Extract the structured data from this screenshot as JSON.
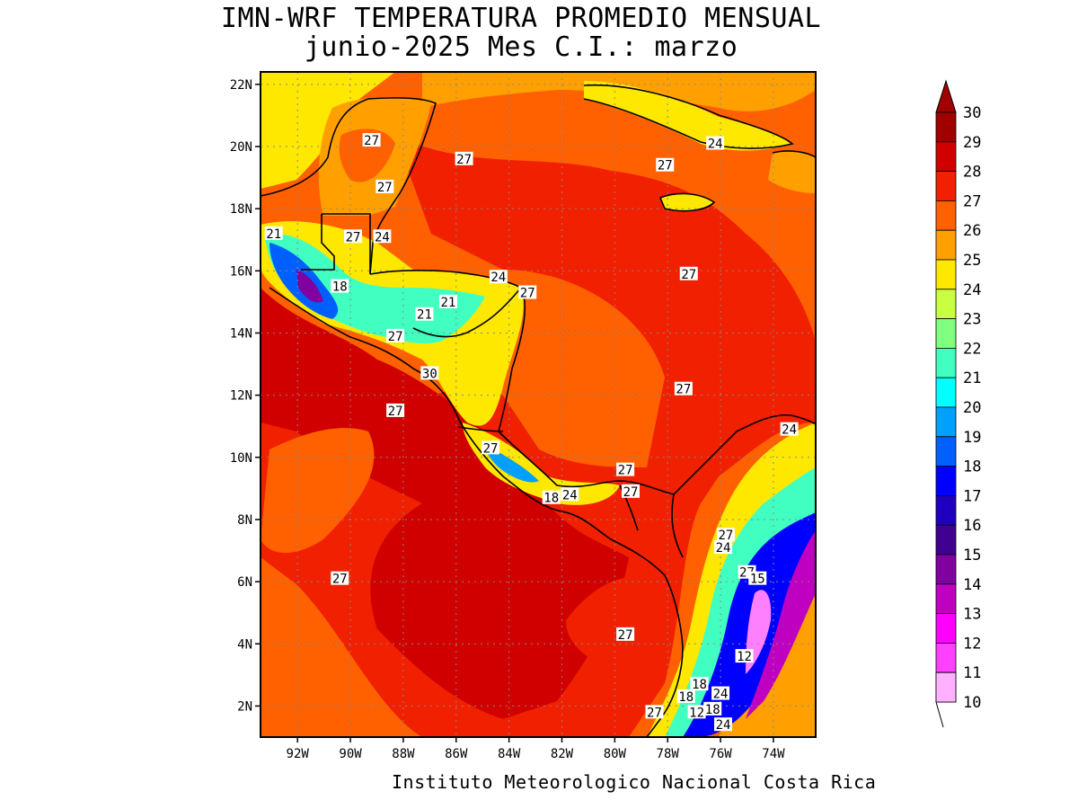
{
  "title": {
    "line1": "IMN-WRF  TEMPERATURA PROMEDIO MENSUAL",
    "line2": "junio-2025 Mes C.I.: marzo"
  },
  "credit": "Instituto Meteorologico Nacional Costa Rica",
  "axes": {
    "lat_ticks": [
      "22N",
      "20N",
      "18N",
      "16N",
      "14N",
      "12N",
      "10N",
      "8N",
      "6N",
      "4N",
      "2N"
    ],
    "lon_ticks": [
      "92W",
      "90W",
      "88W",
      "86W",
      "84W",
      "82W",
      "80W",
      "78W",
      "76W",
      "74W"
    ],
    "lat_range": [
      1,
      22.4
    ],
    "lon_range": [
      -93.4,
      -72.4
    ]
  },
  "colorbar": {
    "levels": [
      "30",
      "29",
      "28",
      "27",
      "26",
      "25",
      "24",
      "23",
      "22",
      "21",
      "20",
      "19",
      "18",
      "17",
      "16",
      "15",
      "14",
      "13",
      "12",
      "11",
      "10"
    ],
    "colors": [
      "#a00000",
      "#d00000",
      "#f02000",
      "#ff6000",
      "#ffa000",
      "#ffe800",
      "#c8ff40",
      "#80ff80",
      "#40ffc0",
      "#00ffff",
      "#00a0ff",
      "#0060ff",
      "#0000ff",
      "#2000c0",
      "#400090",
      "#8000a0",
      "#c000c0",
      "#ff00ff",
      "#ff40ff",
      "#ff80ff",
      "#ffb0ff"
    ]
  },
  "contour_labels": [
    {
      "lon": -89.2,
      "lat": 20.2,
      "text": "27"
    },
    {
      "lon": -85.7,
      "lat": 19.6,
      "text": "27"
    },
    {
      "lon": -78.1,
      "lat": 19.4,
      "text": "27"
    },
    {
      "lon": -76.2,
      "lat": 20.1,
      "text": "24"
    },
    {
      "lon": -88.7,
      "lat": 18.7,
      "text": "27"
    },
    {
      "lon": -92.9,
      "lat": 17.2,
      "text": "21"
    },
    {
      "lon": -89.9,
      "lat": 17.1,
      "text": "27"
    },
    {
      "lon": -88.8,
      "lat": 17.1,
      "text": "24"
    },
    {
      "lon": -90.4,
      "lat": 15.5,
      "text": "18"
    },
    {
      "lon": -84.4,
      "lat": 15.8,
      "text": "24"
    },
    {
      "lon": -83.3,
      "lat": 15.3,
      "text": "27"
    },
    {
      "lon": -86.3,
      "lat": 15.0,
      "text": "21"
    },
    {
      "lon": -87.2,
      "lat": 14.6,
      "text": "21"
    },
    {
      "lon": -88.3,
      "lat": 13.9,
      "text": "27"
    },
    {
      "lon": -87.0,
      "lat": 12.7,
      "text": "30"
    },
    {
      "lon": -88.3,
      "lat": 11.5,
      "text": "27"
    },
    {
      "lon": -77.4,
      "lat": 12.2,
      "text": "27"
    },
    {
      "lon": -77.2,
      "lat": 15.9,
      "text": "27"
    },
    {
      "lon": -73.4,
      "lat": 10.9,
      "text": "24"
    },
    {
      "lon": -84.7,
      "lat": 10.3,
      "text": "27"
    },
    {
      "lon": -79.6,
      "lat": 9.6,
      "text": "27"
    },
    {
      "lon": -79.4,
      "lat": 8.9,
      "text": "27"
    },
    {
      "lon": -82.4,
      "lat": 8.7,
      "text": "18"
    },
    {
      "lon": -81.7,
      "lat": 8.8,
      "text": "24"
    },
    {
      "lon": -75.8,
      "lat": 7.5,
      "text": "27"
    },
    {
      "lon": -75.9,
      "lat": 7.1,
      "text": "24"
    },
    {
      "lon": -75.0,
      "lat": 6.3,
      "text": "27"
    },
    {
      "lon": -74.6,
      "lat": 6.1,
      "text": "15"
    },
    {
      "lon": -90.4,
      "lat": 6.1,
      "text": "27"
    },
    {
      "lon": -79.6,
      "lat": 4.3,
      "text": "27"
    },
    {
      "lon": -75.1,
      "lat": 3.6,
      "text": "12"
    },
    {
      "lon": -76.8,
      "lat": 2.7,
      "text": "18"
    },
    {
      "lon": -77.3,
      "lat": 2.3,
      "text": "18"
    },
    {
      "lon": -76.0,
      "lat": 2.4,
      "text": "24"
    },
    {
      "lon": -76.3,
      "lat": 1.9,
      "text": "18"
    },
    {
      "lon": -76.9,
      "lat": 1.8,
      "text": "12"
    },
    {
      "lon": -75.9,
      "lat": 1.4,
      "text": "24"
    },
    {
      "lon": -78.5,
      "lat": 1.8,
      "text": "27"
    }
  ]
}
